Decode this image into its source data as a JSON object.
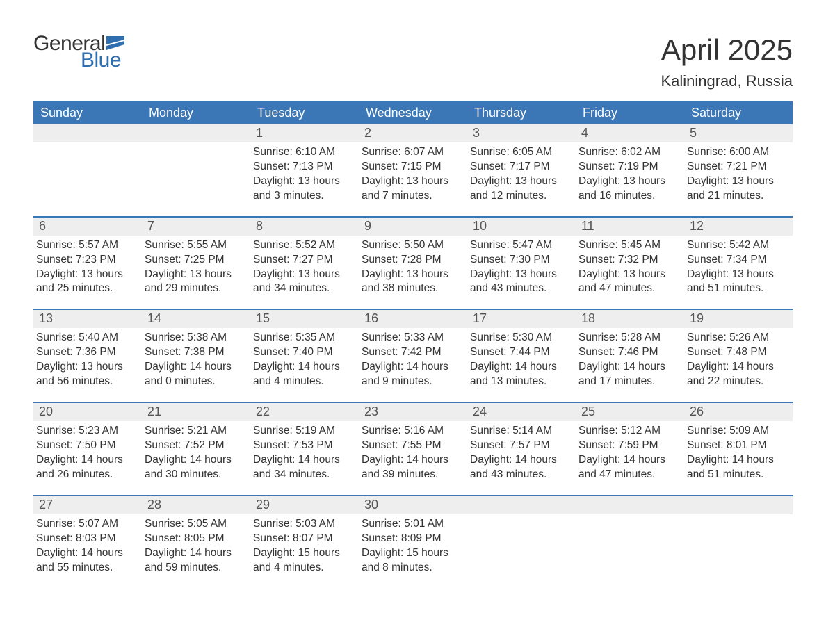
{
  "brand": {
    "word1": "General",
    "word2": "Blue",
    "accent_color": "#2f6fb0",
    "text_color": "#333333"
  },
  "header": {
    "month_title": "April 2025",
    "location": "Kaliningrad, Russia"
  },
  "style": {
    "background": "#ffffff",
    "header_bar_bg": "#3b77b6",
    "header_bar_text": "#ffffff",
    "daynum_bg": "#eeeeee",
    "week_border": "#3b77b6",
    "body_text": "#333333",
    "title_fontsize": 42,
    "location_fontsize": 22,
    "weekday_fontsize": 18,
    "daynum_fontsize": 18,
    "body_fontsize": 15.5
  },
  "weekdays": [
    "Sunday",
    "Monday",
    "Tuesday",
    "Wednesday",
    "Thursday",
    "Friday",
    "Saturday"
  ],
  "labels": {
    "sunrise": "Sunrise:",
    "sunset": "Sunset:",
    "daylight": "Daylight:"
  },
  "weeks": [
    [
      {
        "day": "",
        "sunrise": "",
        "sunset": "",
        "daylight1": "",
        "daylight2": ""
      },
      {
        "day": "",
        "sunrise": "",
        "sunset": "",
        "daylight1": "",
        "daylight2": ""
      },
      {
        "day": "1",
        "sunrise": "Sunrise: 6:10 AM",
        "sunset": "Sunset: 7:13 PM",
        "daylight1": "Daylight: 13 hours",
        "daylight2": "and 3 minutes."
      },
      {
        "day": "2",
        "sunrise": "Sunrise: 6:07 AM",
        "sunset": "Sunset: 7:15 PM",
        "daylight1": "Daylight: 13 hours",
        "daylight2": "and 7 minutes."
      },
      {
        "day": "3",
        "sunrise": "Sunrise: 6:05 AM",
        "sunset": "Sunset: 7:17 PM",
        "daylight1": "Daylight: 13 hours",
        "daylight2": "and 12 minutes."
      },
      {
        "day": "4",
        "sunrise": "Sunrise: 6:02 AM",
        "sunset": "Sunset: 7:19 PM",
        "daylight1": "Daylight: 13 hours",
        "daylight2": "and 16 minutes."
      },
      {
        "day": "5",
        "sunrise": "Sunrise: 6:00 AM",
        "sunset": "Sunset: 7:21 PM",
        "daylight1": "Daylight: 13 hours",
        "daylight2": "and 21 minutes."
      }
    ],
    [
      {
        "day": "6",
        "sunrise": "Sunrise: 5:57 AM",
        "sunset": "Sunset: 7:23 PM",
        "daylight1": "Daylight: 13 hours",
        "daylight2": "and 25 minutes."
      },
      {
        "day": "7",
        "sunrise": "Sunrise: 5:55 AM",
        "sunset": "Sunset: 7:25 PM",
        "daylight1": "Daylight: 13 hours",
        "daylight2": "and 29 minutes."
      },
      {
        "day": "8",
        "sunrise": "Sunrise: 5:52 AM",
        "sunset": "Sunset: 7:27 PM",
        "daylight1": "Daylight: 13 hours",
        "daylight2": "and 34 minutes."
      },
      {
        "day": "9",
        "sunrise": "Sunrise: 5:50 AM",
        "sunset": "Sunset: 7:28 PM",
        "daylight1": "Daylight: 13 hours",
        "daylight2": "and 38 minutes."
      },
      {
        "day": "10",
        "sunrise": "Sunrise: 5:47 AM",
        "sunset": "Sunset: 7:30 PM",
        "daylight1": "Daylight: 13 hours",
        "daylight2": "and 43 minutes."
      },
      {
        "day": "11",
        "sunrise": "Sunrise: 5:45 AM",
        "sunset": "Sunset: 7:32 PM",
        "daylight1": "Daylight: 13 hours",
        "daylight2": "and 47 minutes."
      },
      {
        "day": "12",
        "sunrise": "Sunrise: 5:42 AM",
        "sunset": "Sunset: 7:34 PM",
        "daylight1": "Daylight: 13 hours",
        "daylight2": "and 51 minutes."
      }
    ],
    [
      {
        "day": "13",
        "sunrise": "Sunrise: 5:40 AM",
        "sunset": "Sunset: 7:36 PM",
        "daylight1": "Daylight: 13 hours",
        "daylight2": "and 56 minutes."
      },
      {
        "day": "14",
        "sunrise": "Sunrise: 5:38 AM",
        "sunset": "Sunset: 7:38 PM",
        "daylight1": "Daylight: 14 hours",
        "daylight2": "and 0 minutes."
      },
      {
        "day": "15",
        "sunrise": "Sunrise: 5:35 AM",
        "sunset": "Sunset: 7:40 PM",
        "daylight1": "Daylight: 14 hours",
        "daylight2": "and 4 minutes."
      },
      {
        "day": "16",
        "sunrise": "Sunrise: 5:33 AM",
        "sunset": "Sunset: 7:42 PM",
        "daylight1": "Daylight: 14 hours",
        "daylight2": "and 9 minutes."
      },
      {
        "day": "17",
        "sunrise": "Sunrise: 5:30 AM",
        "sunset": "Sunset: 7:44 PM",
        "daylight1": "Daylight: 14 hours",
        "daylight2": "and 13 minutes."
      },
      {
        "day": "18",
        "sunrise": "Sunrise: 5:28 AM",
        "sunset": "Sunset: 7:46 PM",
        "daylight1": "Daylight: 14 hours",
        "daylight2": "and 17 minutes."
      },
      {
        "day": "19",
        "sunrise": "Sunrise: 5:26 AM",
        "sunset": "Sunset: 7:48 PM",
        "daylight1": "Daylight: 14 hours",
        "daylight2": "and 22 minutes."
      }
    ],
    [
      {
        "day": "20",
        "sunrise": "Sunrise: 5:23 AM",
        "sunset": "Sunset: 7:50 PM",
        "daylight1": "Daylight: 14 hours",
        "daylight2": "and 26 minutes."
      },
      {
        "day": "21",
        "sunrise": "Sunrise: 5:21 AM",
        "sunset": "Sunset: 7:52 PM",
        "daylight1": "Daylight: 14 hours",
        "daylight2": "and 30 minutes."
      },
      {
        "day": "22",
        "sunrise": "Sunrise: 5:19 AM",
        "sunset": "Sunset: 7:53 PM",
        "daylight1": "Daylight: 14 hours",
        "daylight2": "and 34 minutes."
      },
      {
        "day": "23",
        "sunrise": "Sunrise: 5:16 AM",
        "sunset": "Sunset: 7:55 PM",
        "daylight1": "Daylight: 14 hours",
        "daylight2": "and 39 minutes."
      },
      {
        "day": "24",
        "sunrise": "Sunrise: 5:14 AM",
        "sunset": "Sunset: 7:57 PM",
        "daylight1": "Daylight: 14 hours",
        "daylight2": "and 43 minutes."
      },
      {
        "day": "25",
        "sunrise": "Sunrise: 5:12 AM",
        "sunset": "Sunset: 7:59 PM",
        "daylight1": "Daylight: 14 hours",
        "daylight2": "and 47 minutes."
      },
      {
        "day": "26",
        "sunrise": "Sunrise: 5:09 AM",
        "sunset": "Sunset: 8:01 PM",
        "daylight1": "Daylight: 14 hours",
        "daylight2": "and 51 minutes."
      }
    ],
    [
      {
        "day": "27",
        "sunrise": "Sunrise: 5:07 AM",
        "sunset": "Sunset: 8:03 PM",
        "daylight1": "Daylight: 14 hours",
        "daylight2": "and 55 minutes."
      },
      {
        "day": "28",
        "sunrise": "Sunrise: 5:05 AM",
        "sunset": "Sunset: 8:05 PM",
        "daylight1": "Daylight: 14 hours",
        "daylight2": "and 59 minutes."
      },
      {
        "day": "29",
        "sunrise": "Sunrise: 5:03 AM",
        "sunset": "Sunset: 8:07 PM",
        "daylight1": "Daylight: 15 hours",
        "daylight2": "and 4 minutes."
      },
      {
        "day": "30",
        "sunrise": "Sunrise: 5:01 AM",
        "sunset": "Sunset: 8:09 PM",
        "daylight1": "Daylight: 15 hours",
        "daylight2": "and 8 minutes."
      },
      {
        "day": "",
        "sunrise": "",
        "sunset": "",
        "daylight1": "",
        "daylight2": ""
      },
      {
        "day": "",
        "sunrise": "",
        "sunset": "",
        "daylight1": "",
        "daylight2": ""
      },
      {
        "day": "",
        "sunrise": "",
        "sunset": "",
        "daylight1": "",
        "daylight2": ""
      }
    ]
  ]
}
